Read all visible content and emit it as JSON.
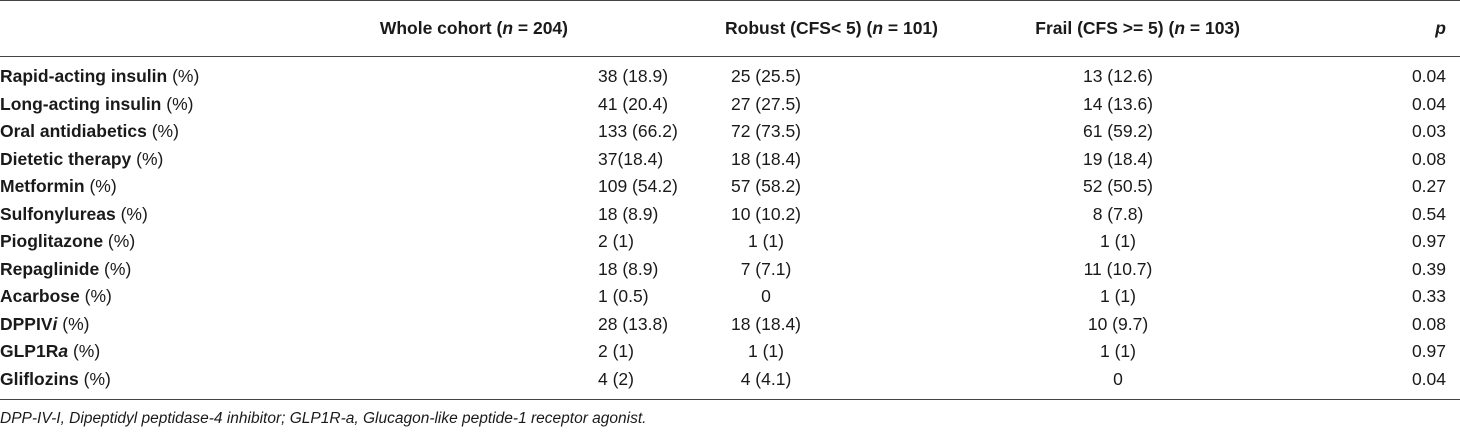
{
  "table": {
    "headers": {
      "label": "",
      "whole_pre": "Whole cohort (",
      "whole_n": "n",
      "whole_post": " = 204)",
      "robust_pre": "Robust (CFS< 5) (",
      "robust_n": "n",
      "robust_post": " = 101)",
      "frail_pre": "Frail (CFS >= 5) (",
      "frail_n": "n",
      "frail_post": " = 103)",
      "p": "p"
    },
    "rows": [
      {
        "name": "Rapid-acting insulin",
        "name_it": "",
        "unit": " (%)",
        "whole": "38 (18.9)",
        "robust": "25 (25.5)",
        "frail": "13 (12.6)",
        "p": "0.04"
      },
      {
        "name": "Long-acting insulin",
        "name_it": "",
        "unit": " (%)",
        "whole": "41 (20.4)",
        "robust": "27 (27.5)",
        "frail": "14 (13.6)",
        "p": "0.04"
      },
      {
        "name": "Oral antidiabetics",
        "name_it": "",
        "unit": " (%)",
        "whole": "133 (66.2)",
        "robust": "72 (73.5)",
        "frail": "61 (59.2)",
        "p": "0.03"
      },
      {
        "name": "Dietetic therapy",
        "name_it": "",
        "unit": " (%)",
        "whole": "37(18.4)",
        "robust": "18 (18.4)",
        "frail": "19 (18.4)",
        "p": "0.08"
      },
      {
        "name": "Metformin",
        "name_it": "",
        "unit": " (%)",
        "whole": "109 (54.2)",
        "robust": "57 (58.2)",
        "frail": "52 (50.5)",
        "p": "0.27"
      },
      {
        "name": "Sulfonylureas",
        "name_it": "",
        "unit": " (%)",
        "whole": "18 (8.9)",
        "robust": "10 (10.2)",
        "frail": "8 (7.8)",
        "p": "0.54"
      },
      {
        "name": "Pioglitazone",
        "name_it": "",
        "unit": " (%)",
        "whole": "2 (1)",
        "robust": "1 (1)",
        "frail": "1 (1)",
        "p": "0.97"
      },
      {
        "name": "Repaglinide",
        "name_it": "",
        "unit": " (%)",
        "whole": "18 (8.9)",
        "robust": "7 (7.1)",
        "frail": "11 (10.7)",
        "p": "0.39"
      },
      {
        "name": "Acarbose",
        "name_it": "",
        "unit": " (%)",
        "whole": "1 (0.5)",
        "robust": "0",
        "frail": "1 (1)",
        "p": "0.33"
      },
      {
        "name": "DPPIV",
        "name_it": "i",
        "unit": " (%)",
        "whole": "28 (13.8)",
        "robust": "18 (18.4)",
        "frail": "10 (9.7)",
        "p": "0.08"
      },
      {
        "name": "GLP1R",
        "name_it": "a",
        "unit": " (%)",
        "whole": "2 (1)",
        "robust": "1 (1)",
        "frail": "1 (1)",
        "p": "0.97"
      },
      {
        "name": "Gliflozins",
        "name_it": "",
        "unit": " (%)",
        "whole": "4 (2)",
        "robust": "4 (4.1)",
        "frail": "0",
        "p": "0.04"
      }
    ]
  },
  "footnote": "DPP-IV-I, Dipeptidyl peptidase-4 inhibitor; GLP1R-a, Glucagon-like peptide-1 receptor agonist."
}
